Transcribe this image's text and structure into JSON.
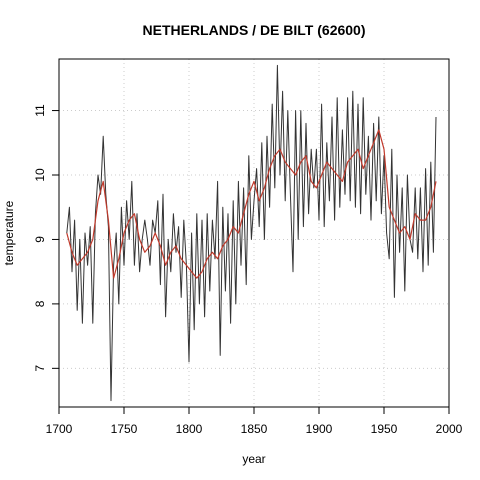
{
  "chart_data": {
    "type": "line",
    "title": "NETHERLANDS / DE BILT (62600)",
    "xlabel": "year",
    "ylabel": "temperature",
    "xlim": [
      1700,
      2000
    ],
    "ylim": [
      6.4,
      11.8
    ],
    "xticks": [
      1700,
      1750,
      1800,
      1850,
      1900,
      1950,
      2000
    ],
    "yticks": [
      7,
      8,
      9,
      10,
      11
    ],
    "grid": true,
    "colors": {
      "raw": "#333333",
      "smoothed": "#c0392b",
      "grid": "#cccccc"
    },
    "series": [
      {
        "role": "raw",
        "x": [
          1706,
          1708,
          1710,
          1712,
          1714,
          1716,
          1718,
          1720,
          1722,
          1724,
          1726,
          1728,
          1730,
          1732,
          1734,
          1736,
          1738,
          1740,
          1742,
          1744,
          1746,
          1748,
          1750,
          1752,
          1754,
          1756,
          1758,
          1760,
          1762,
          1764,
          1766,
          1768,
          1770,
          1772,
          1774,
          1776,
          1778,
          1780,
          1782,
          1784,
          1786,
          1788,
          1790,
          1792,
          1794,
          1796,
          1798,
          1800,
          1802,
          1804,
          1806,
          1808,
          1810,
          1812,
          1814,
          1816,
          1818,
          1820,
          1822,
          1824,
          1826,
          1828,
          1830,
          1832,
          1834,
          1836,
          1838,
          1840,
          1842,
          1844,
          1846,
          1848,
          1850,
          1852,
          1854,
          1856,
          1858,
          1860,
          1862,
          1864,
          1866,
          1868,
          1870,
          1872,
          1874,
          1876,
          1878,
          1880,
          1882,
          1884,
          1886,
          1888,
          1890,
          1892,
          1894,
          1896,
          1898,
          1900,
          1902,
          1904,
          1906,
          1908,
          1910,
          1912,
          1914,
          1916,
          1918,
          1920,
          1922,
          1924,
          1926,
          1928,
          1930,
          1932,
          1934,
          1936,
          1938,
          1940,
          1942,
          1944,
          1946,
          1948,
          1950,
          1952,
          1954,
          1956,
          1958,
          1960,
          1962,
          1964,
          1966,
          1968,
          1970,
          1972,
          1974,
          1976,
          1978,
          1980,
          1982,
          1984,
          1986,
          1988,
          1990
        ],
        "y": [
          9.1,
          9.5,
          8.5,
          9.3,
          7.9,
          9.0,
          7.7,
          9.1,
          8.6,
          9.2,
          7.7,
          9.4,
          10.0,
          9.7,
          10.6,
          9.7,
          9.2,
          6.5,
          8.6,
          9.1,
          8.0,
          9.5,
          8.6,
          9.6,
          9.0,
          9.9,
          8.6,
          9.4,
          8.5,
          9.0,
          9.3,
          9.0,
          8.6,
          9.3,
          9.1,
          9.6,
          8.3,
          9.7,
          7.8,
          9.0,
          8.5,
          9.4,
          8.8,
          9.2,
          8.1,
          9.3,
          8.6,
          7.1,
          9.1,
          7.6,
          9.4,
          8.0,
          9.3,
          7.8,
          9.4,
          8.2,
          9.3,
          8.7,
          9.9,
          7.2,
          9.5,
          8.2,
          9.4,
          7.7,
          9.6,
          8.0,
          9.9,
          8.6,
          9.8,
          8.3,
          10.3,
          9.0,
          9.6,
          10.1,
          9.2,
          10.5,
          9.0,
          10.6,
          9.5,
          11.1,
          9.8,
          11.7,
          10.0,
          11.3,
          9.6,
          11.0,
          9.7,
          8.5,
          11.0,
          9.0,
          11.0,
          9.2,
          10.8,
          9.4,
          10.4,
          9.8,
          10.4,
          9.3,
          11.1,
          9.2,
          10.5,
          9.6,
          10.9,
          9.3,
          11.2,
          9.5,
          10.7,
          9.7,
          11.2,
          9.6,
          11.3,
          9.5,
          11.1,
          9.4,
          11.2,
          9.7,
          10.6,
          9.3,
          10.8,
          9.6,
          10.9,
          9.4,
          10.3,
          9.1,
          8.7,
          10.4,
          8.1,
          10.0,
          8.8,
          9.8,
          8.2,
          10.0,
          9.0,
          8.8,
          9.8,
          8.7,
          9.8,
          8.5,
          10.1,
          8.6,
          10.2,
          8.8,
          10.9
        ],
        "name": ""
      },
      {
        "role": "smoothed",
        "x": [
          1706,
          1710,
          1714,
          1718,
          1722,
          1726,
          1730,
          1734,
          1738,
          1742,
          1746,
          1750,
          1754,
          1758,
          1762,
          1766,
          1770,
          1774,
          1778,
          1782,
          1786,
          1790,
          1794,
          1798,
          1802,
          1806,
          1810,
          1814,
          1818,
          1822,
          1826,
          1830,
          1834,
          1838,
          1842,
          1846,
          1850,
          1854,
          1858,
          1862,
          1866,
          1870,
          1874,
          1878,
          1882,
          1886,
          1890,
          1894,
          1898,
          1902,
          1906,
          1910,
          1914,
          1918,
          1922,
          1926,
          1930,
          1934,
          1938,
          1942,
          1946,
          1950,
          1954,
          1958,
          1962,
          1966,
          1970,
          1974,
          1978,
          1982,
          1986,
          1990
        ],
        "y": [
          9.1,
          8.8,
          8.6,
          8.7,
          8.8,
          9.0,
          9.6,
          9.9,
          9.3,
          8.4,
          8.7,
          9.1,
          9.3,
          9.4,
          9.0,
          8.8,
          8.9,
          9.1,
          8.9,
          8.6,
          8.8,
          8.9,
          8.7,
          8.6,
          8.5,
          8.4,
          8.5,
          8.7,
          8.8,
          8.7,
          8.9,
          9.0,
          9.2,
          9.1,
          9.4,
          9.7,
          9.9,
          9.6,
          9.8,
          10.1,
          10.3,
          10.4,
          10.2,
          10.1,
          10.0,
          10.2,
          10.3,
          9.9,
          9.8,
          10.0,
          10.2,
          10.1,
          10.0,
          9.9,
          10.2,
          10.3,
          10.4,
          10.1,
          10.3,
          10.5,
          10.7,
          10.4,
          9.5,
          9.3,
          9.1,
          9.2,
          9.0,
          9.4,
          9.3,
          9.3,
          9.5,
          9.9
        ],
        "name": ""
      }
    ]
  }
}
